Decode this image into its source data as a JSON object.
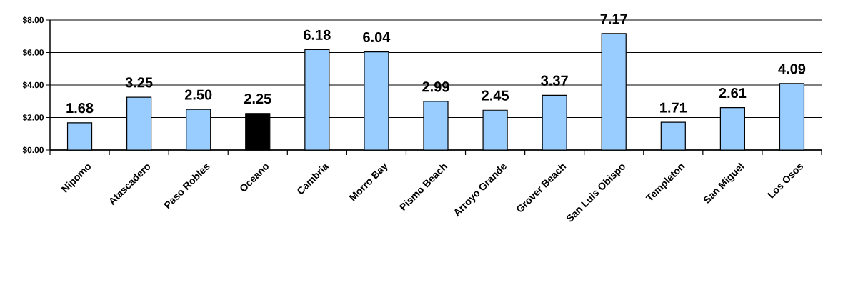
{
  "chart_data": {
    "type": "bar",
    "categories": [
      "Nipomo",
      "Atascadero",
      "Paso Robles",
      "Oceano",
      "Cambria",
      "Morro Bay",
      "Pismo Beach",
      "Arroyo Grande",
      "Grover Beach",
      "San Luis Obispo",
      "Templeton",
      "San Miguel",
      "Los Osos"
    ],
    "values": [
      1.68,
      3.25,
      2.5,
      2.25,
      6.18,
      6.04,
      2.99,
      2.45,
      3.37,
      7.17,
      1.71,
      2.61,
      4.09
    ],
    "value_labels": [
      "1.68",
      "3.25",
      "2.50",
      "2.25",
      "6.18",
      "6.04",
      "2.99",
      "2.45",
      "3.37",
      "7.17",
      "1.71",
      "2.61",
      "4.09"
    ],
    "colors": [
      "#99ccff",
      "#99ccff",
      "#99ccff",
      "#000000",
      "#99ccff",
      "#99ccff",
      "#99ccff",
      "#99ccff",
      "#99ccff",
      "#99ccff",
      "#99ccff",
      "#99ccff",
      "#99ccff"
    ],
    "ylim": [
      0,
      8
    ],
    "yticks": [
      {
        "value": 0,
        "label": "$0.00"
      },
      {
        "value": 2,
        "label": "$2.00"
      },
      {
        "value": 4,
        "label": "$4.00"
      },
      {
        "value": 6,
        "label": "$6.00"
      },
      {
        "value": 8,
        "label": "$8.00"
      }
    ],
    "grid": "y"
  }
}
